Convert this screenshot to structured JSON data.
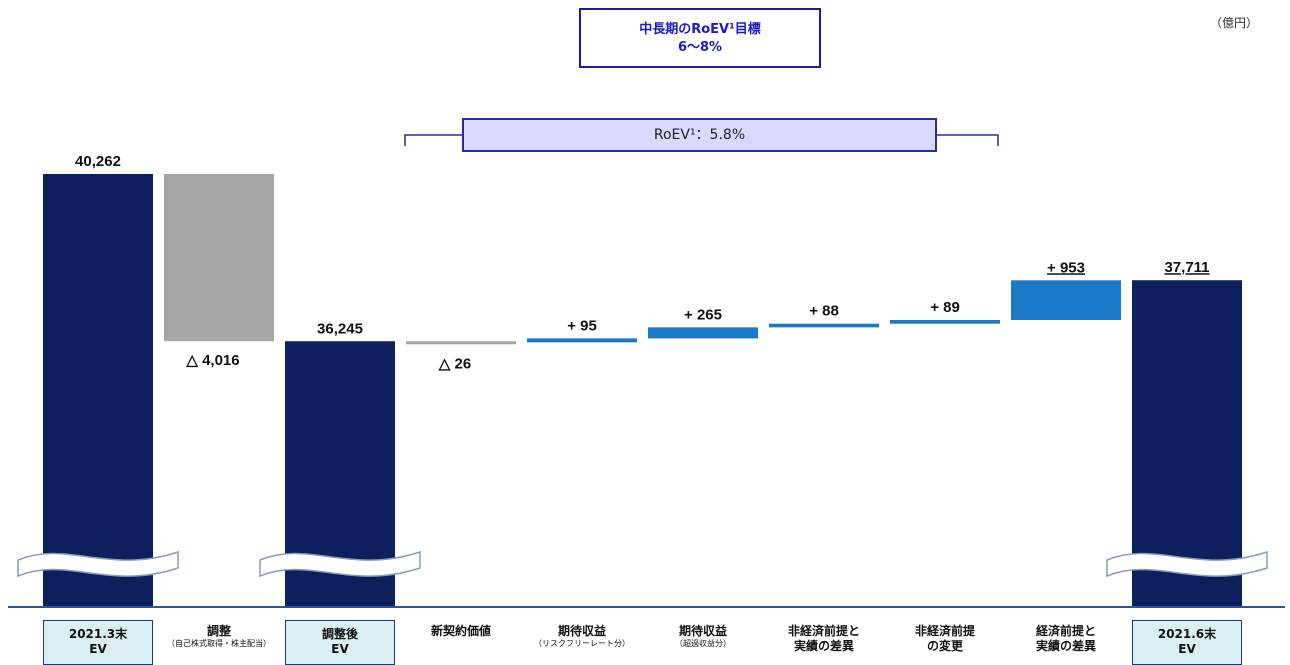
{
  "unit_label": "（億円）",
  "target": {
    "line1": "中長期のRoEV¹目標",
    "line2": "6～8%"
  },
  "roev_label": "RoEV¹：5.8%",
  "categories": [
    {
      "line1": "2021.3末",
      "line2": "EV",
      "sub": "",
      "boxed": true
    },
    {
      "line1": "調整",
      "line2": "",
      "sub": "（自己株式取得・株主配当）",
      "boxed": false
    },
    {
      "line1": "調整後",
      "line2": "EV",
      "sub": "",
      "boxed": true
    },
    {
      "line1": "新契約価値",
      "line2": "",
      "sub": "",
      "boxed": false
    },
    {
      "line1": "期待収益",
      "line2": "",
      "sub": "（リスクフリーレート分）",
      "boxed": false
    },
    {
      "line1": "期待収益",
      "line2": "",
      "sub": "（超過収益分）",
      "boxed": false
    },
    {
      "line1": "非経済前提と",
      "line2": "実績の差異",
      "sub": "",
      "boxed": false
    },
    {
      "line1": "非経済前提",
      "line2": "の変更",
      "sub": "",
      "boxed": false
    },
    {
      "line1": "経済前提と",
      "line2": "実績の差異",
      "sub": "",
      "boxed": false
    },
    {
      "line1": "2021.6末",
      "line2": "EV",
      "sub": "",
      "boxed": true
    }
  ],
  "chart_data": {
    "type": "bar",
    "subtype": "waterfall",
    "axis_break": true,
    "colors": {
      "total": "#0d1f5c",
      "negative": "#a6a6a6",
      "positive": "#1a7ac8",
      "axis": "#2f5597"
    },
    "values": [
      40262,
      -4016,
      36245,
      -26,
      95,
      265,
      88,
      89,
      953,
      37711
    ],
    "kinds": [
      "total",
      "negative",
      "total",
      "negative",
      "positive",
      "positive",
      "positive",
      "positive",
      "positive",
      "total"
    ],
    "labels": [
      "40,262",
      "△ 4,016",
      "36,245",
      "△ 26",
      "+ 95",
      "+ 265",
      "+ 88",
      "+ 89",
      "+ 953",
      "37,711"
    ],
    "underlined": [
      false,
      false,
      false,
      false,
      false,
      false,
      false,
      false,
      true,
      true
    ]
  }
}
